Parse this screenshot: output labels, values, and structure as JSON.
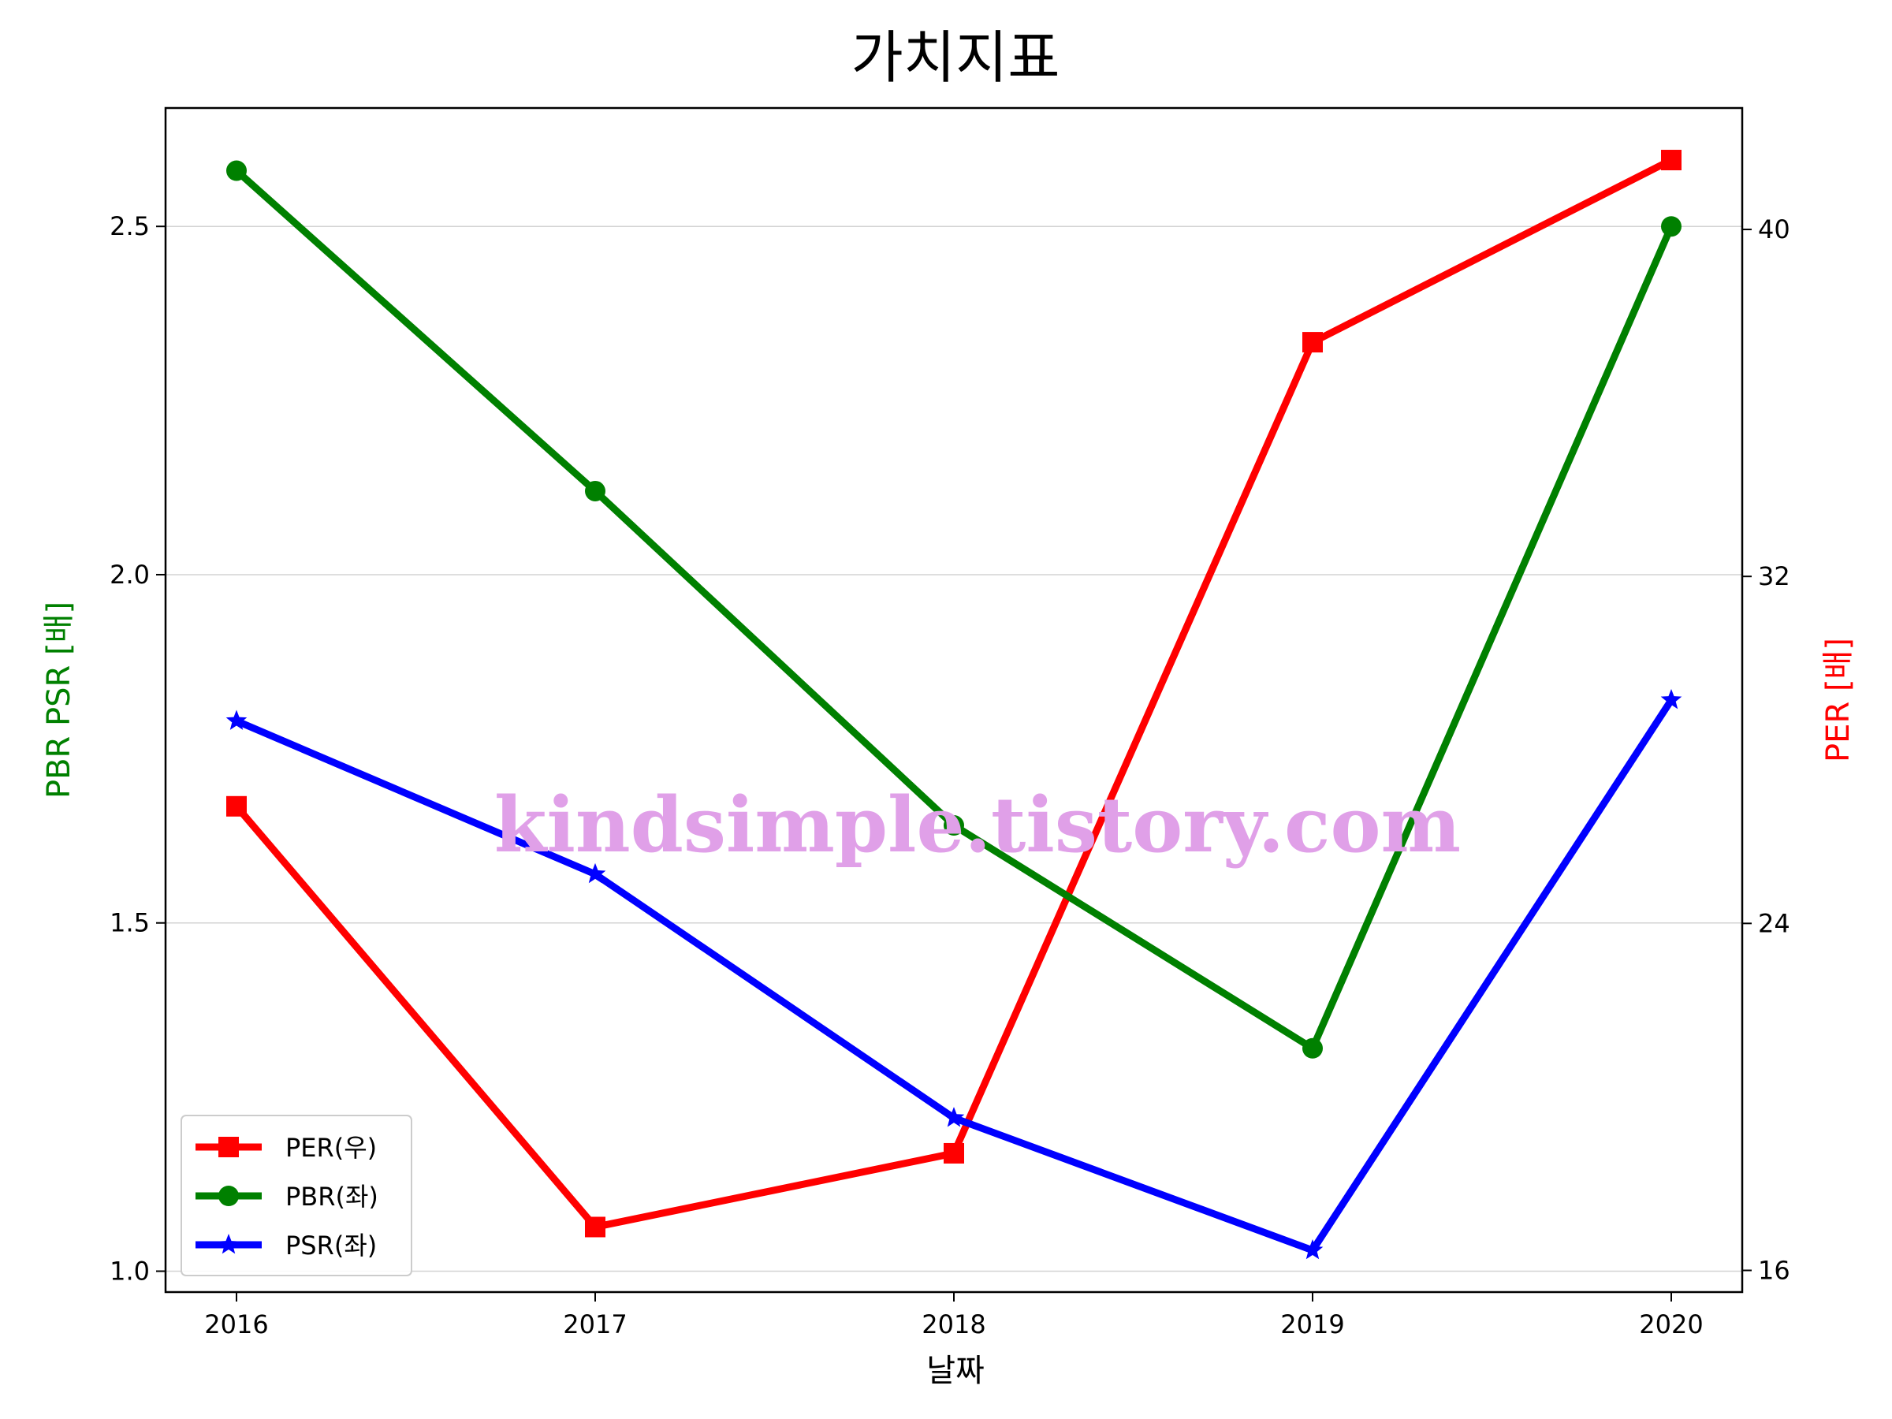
{
  "chart_data": {
    "type": "line",
    "title": "가치지표",
    "xlabel": "날짜",
    "ylabel_left": "PBR PSR [배]",
    "ylabel_right": "PER [배]",
    "categories": [
      "2016",
      "2017",
      "2018",
      "2019",
      "2020"
    ],
    "yticks_left": [
      "1.0",
      "1.5",
      "2.0",
      "2.5"
    ],
    "yticks_right": [
      "16",
      "24",
      "32",
      "40"
    ],
    "ylim_left": [
      0.97,
      2.67
    ],
    "ylim_right": [
      15.5,
      42.8
    ],
    "grid": "horizontal-left",
    "legend_position": "lower-left",
    "watermark": "kindsimple.tistory.com",
    "colors": {
      "left_label": "#008000",
      "right_label": "#ff0000",
      "watermark": "#e0a0e8",
      "grid": "#d3d3d3"
    },
    "series": [
      {
        "name": "PER(우)",
        "axis": "right",
        "color": "#ff0000",
        "marker": "square",
        "values": [
          26.7,
          17.0,
          18.7,
          37.4,
          41.6
        ]
      },
      {
        "name": "PBR(좌)",
        "axis": "left",
        "color": "#008000",
        "marker": "circle",
        "values": [
          2.58,
          2.12,
          1.64,
          1.32,
          2.5
        ]
      },
      {
        "name": "PSR(좌)",
        "axis": "left",
        "color": "#0000ff",
        "marker": "star",
        "values": [
          1.79,
          1.57,
          1.22,
          1.03,
          1.82
        ]
      }
    ]
  }
}
